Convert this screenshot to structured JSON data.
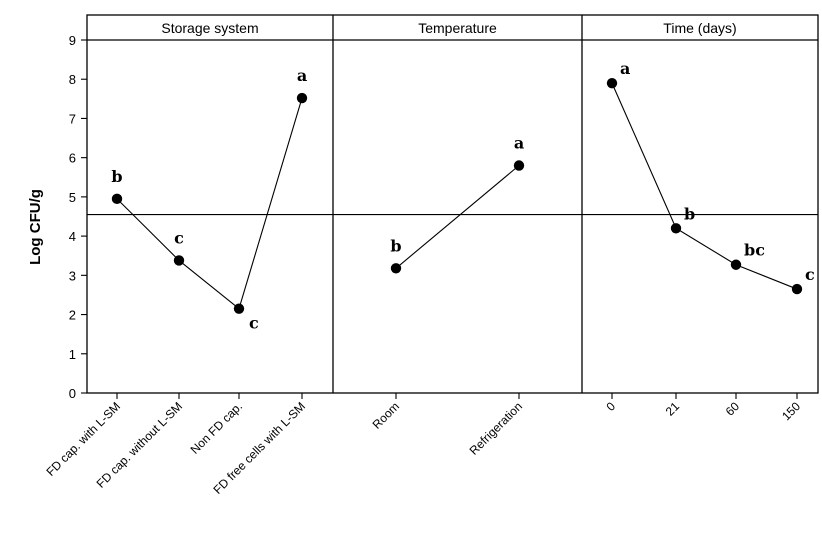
{
  "chart_data": {
    "type": "line",
    "ylabel": "Log CFU/g",
    "ylim": [
      0,
      9
    ],
    "yticks": [
      0,
      1,
      2,
      3,
      4,
      5,
      6,
      7,
      8,
      9
    ],
    "reference_line": 4.55,
    "panels": [
      {
        "title": "Storage system",
        "categories": [
          "FD cap. with L-SM",
          "FD cap. without L-SM",
          "Non FD cap.",
          "FD free cells with L-SM"
        ],
        "values": [
          4.95,
          3.38,
          2.15,
          7.52
        ],
        "letters": [
          "b",
          "c",
          "c",
          "a"
        ]
      },
      {
        "title": "Temperature",
        "categories": [
          "Room",
          "Refrigeration"
        ],
        "values": [
          3.18,
          5.8
        ],
        "letters": [
          "b",
          "a"
        ]
      },
      {
        "title": "Time (days)",
        "categories": [
          "0",
          "21",
          "60",
          "150"
        ],
        "values": [
          7.9,
          4.2,
          3.27,
          2.65
        ],
        "letters": [
          "a",
          "b",
          "bc",
          "c"
        ]
      }
    ]
  }
}
